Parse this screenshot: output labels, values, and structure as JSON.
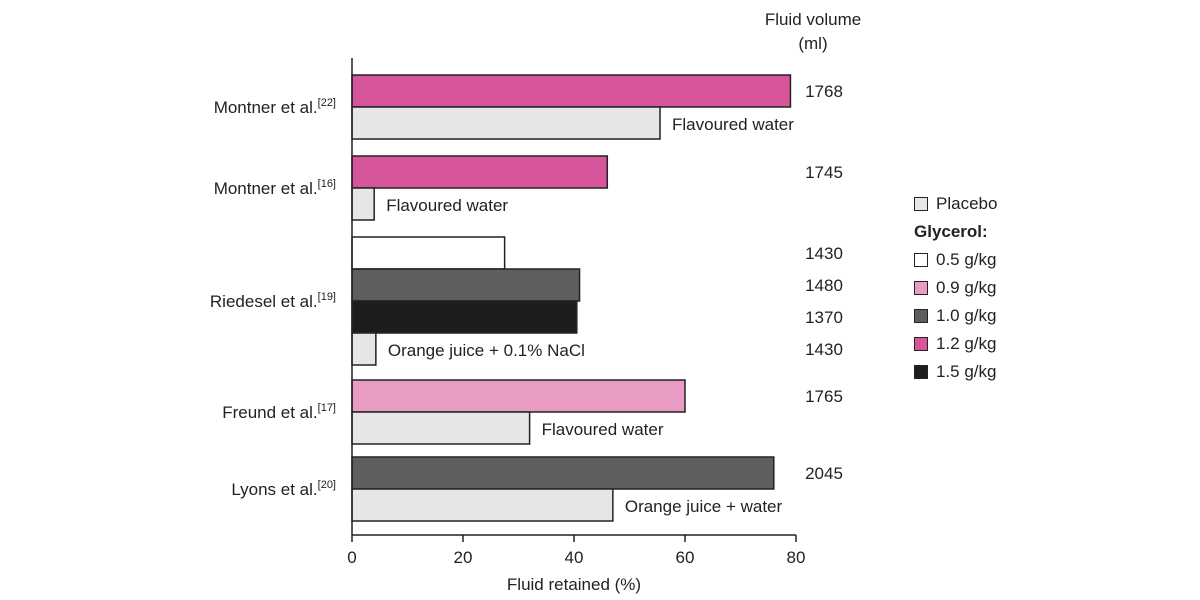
{
  "chart_data": {
    "type": "bar",
    "orientation": "horizontal",
    "xlabel": "Fluid retained (%)",
    "xlim": [
      0,
      80
    ],
    "xticks": [
      0,
      20,
      40,
      60,
      80
    ],
    "volume_header": [
      "Fluid volume",
      "(ml)"
    ],
    "groups": [
      {
        "study": "Montner et al.",
        "ref": "[22]",
        "bars": [
          {
            "series": "1.2 g/kg",
            "value": 79,
            "volume": "1768"
          },
          {
            "series": "Placebo",
            "value": 55.5,
            "annotation": "Flavoured water"
          }
        ]
      },
      {
        "study": "Montner et al.",
        "ref": "[16]",
        "bars": [
          {
            "series": "1.2 g/kg",
            "value": 46,
            "volume": "1745"
          },
          {
            "series": "Placebo",
            "value": 4,
            "annotation": "Flavoured water"
          }
        ]
      },
      {
        "study": "Riedesel et al.",
        "ref": "[19]",
        "bars": [
          {
            "series": "0.5 g/kg",
            "value": 27.5,
            "volume": "1430"
          },
          {
            "series": "1.0 g/kg",
            "value": 41,
            "volume": "1480"
          },
          {
            "series": "1.5 g/kg",
            "value": 40.5,
            "volume": "1370"
          },
          {
            "series": "Placebo",
            "value": 4.3,
            "volume": "1430",
            "annotation": "Orange juice + 0.1% NaCl"
          }
        ]
      },
      {
        "study": "Freund et al.",
        "ref": "[17]",
        "bars": [
          {
            "series": "0.9 g/kg",
            "value": 60,
            "volume": "1765"
          },
          {
            "series": "Placebo",
            "value": 32,
            "annotation": "Flavoured water"
          }
        ]
      },
      {
        "study": "Lyons et al.",
        "ref": "[20]",
        "bars": [
          {
            "series": "1.0 g/kg",
            "value": 76,
            "volume": "2045"
          },
          {
            "series": "Placebo",
            "value": 47,
            "annotation": "Orange juice + water"
          }
        ]
      }
    ],
    "legend": {
      "placement": "right",
      "placebo": {
        "name": "Placebo",
        "color": "#e6e6e6"
      },
      "group_title": "Glycerol:",
      "items": [
        {
          "name": "0.5 g/kg",
          "color": "#ffffff"
        },
        {
          "name": "0.9 g/kg",
          "color": "#e89bc3"
        },
        {
          "name": "1.0 g/kg",
          "color": "#5e5e60"
        },
        {
          "name": "1.2 g/kg",
          "color": "#d6559a"
        },
        {
          "name": "1.5 g/kg",
          "color": "#1f1c1e"
        }
      ]
    }
  }
}
